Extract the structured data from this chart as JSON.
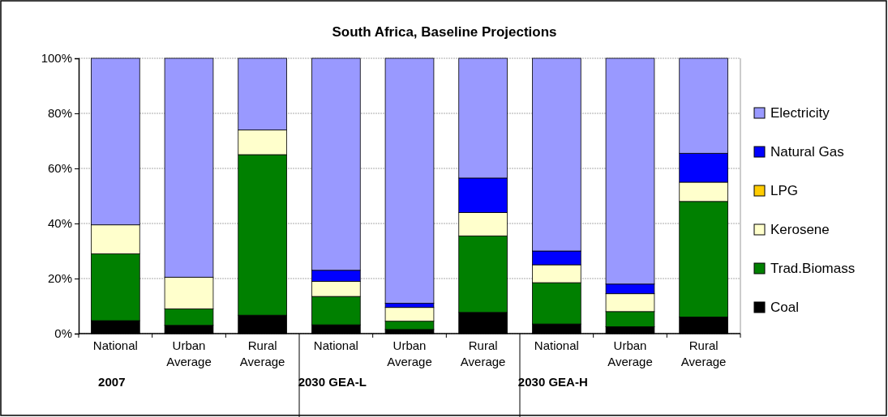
{
  "chart_data": {
    "type": "bar",
    "title": "South Africa, Baseline Projections",
    "stacked": true,
    "categories": [
      "National",
      "Urban Average",
      "Rural Average",
      "National",
      "Urban Average",
      "Rural Average",
      "National",
      "Urban Average",
      "Rural Average"
    ],
    "annotations": [
      "2007",
      "2030 GEA-L",
      "2030 GEA-H"
    ],
    "series": [
      {
        "name": "Coal",
        "color": "#000000",
        "values": [
          4.7,
          3,
          6.7,
          3.2,
          1.5,
          7.7,
          3.5,
          2.5,
          6
        ]
      },
      {
        "name": "Trad.Biomass",
        "color": "#008000",
        "values": [
          24.3,
          6,
          58.3,
          10.3,
          3,
          27.8,
          15,
          5.5,
          42
        ]
      },
      {
        "name": "Kerosene",
        "color": "#ffffcc",
        "values": [
          10.5,
          11.5,
          9,
          5.5,
          5,
          8.5,
          6.5,
          6.5,
          7
        ]
      },
      {
        "name": "LPG",
        "color": "#ffcc00",
        "values": [
          0,
          0,
          0,
          0,
          0,
          0,
          0,
          0,
          0
        ]
      },
      {
        "name": "Natural Gas",
        "color": "#0000ff",
        "values": [
          0,
          0,
          0,
          4,
          1.5,
          12.5,
          5,
          3.5,
          10.5
        ]
      },
      {
        "name": "Electricity",
        "color": "#9999ff",
        "values": [
          60.5,
          79.5,
          26,
          77,
          89,
          43.5,
          70,
          82,
          34.5
        ]
      }
    ],
    "ylim": [
      0,
      100
    ],
    "yticks": [
      {
        "value": 0,
        "label": "0%"
      },
      {
        "value": 20,
        "label": "20%"
      },
      {
        "value": 40,
        "label": "40%"
      },
      {
        "value": 60,
        "label": "60%"
      },
      {
        "value": 80,
        "label": "80%"
      },
      {
        "value": 100,
        "label": "100%"
      }
    ],
    "grid": "y",
    "legend": "right"
  }
}
